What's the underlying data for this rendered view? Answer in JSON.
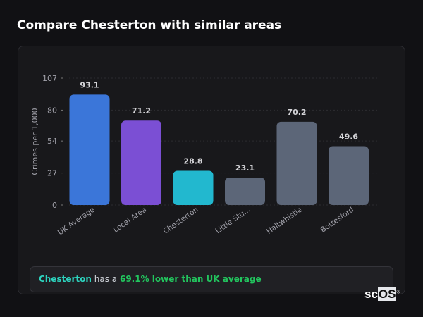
{
  "title": "Compare Chesterton with similar areas",
  "chart_data": {
    "type": "bar",
    "ylabel": "Crimes per 1,000",
    "xlabel": "",
    "ylim": [
      0,
      107
    ],
    "yticks": [
      0,
      27,
      54,
      80,
      107
    ],
    "grid": true,
    "categories": [
      "UK Average",
      "Local Area",
      "Chesterton",
      "Little Stu...",
      "Haltwhistle",
      "Bottesford"
    ],
    "values": [
      93.1,
      71.2,
      28.8,
      23.1,
      70.2,
      49.6
    ],
    "value_labels": [
      "93.1",
      "71.2",
      "28.8",
      "23.1",
      "70.2",
      "49.6"
    ],
    "colors": [
      "#3b76d9",
      "#7b4fd4",
      "#22b8cf",
      "#5c6678",
      "#5c6678",
      "#5c6678"
    ]
  },
  "summary": {
    "area": "Chesterton",
    "middle": " has a ",
    "comparison": "69.1% lower than UK average"
  },
  "logo": {
    "text_a": "sc",
    "text_b": "OS",
    "mark": "®"
  }
}
